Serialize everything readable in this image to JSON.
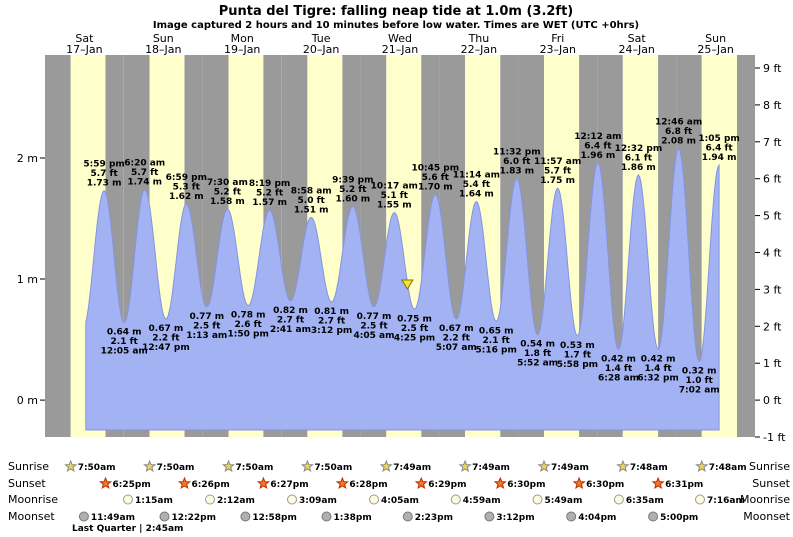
{
  "title": "Punta del Tigre: falling neap tide at 1.0m (3.2ft)",
  "subtitle": "Image captured 2 hours and 10 minutes before low water. Times are WET (UTC +0hrs)",
  "colors": {
    "night_band": "#9a9a9a",
    "day_band": "#ffffcc",
    "tide_fill": "#a2b2f2",
    "tide_stroke": "#8494e0",
    "day_label": "#cc0000",
    "marker_fill": "#f5e33a",
    "marker_stroke": "#857400",
    "sunrise_icon": "#f2d24b",
    "sunrise_icon_stroke": "#8a8a8a",
    "sunset_icon": "#f07828",
    "sunset_icon_stroke": "#c03000",
    "moonrise_icon": "#fffbe0",
    "moonrise_icon_stroke": "#999999",
    "moonset_icon": "#b0b0b0",
    "moonset_icon_stroke": "#777777"
  },
  "days": [
    {
      "name": "Sat",
      "date": "17–Jan"
    },
    {
      "name": "Sun",
      "date": "18–Jan"
    },
    {
      "name": "Mon",
      "date": "19–Jan"
    },
    {
      "name": "Tue",
      "date": "20–Jan"
    },
    {
      "name": "Wed",
      "date": "21–Jan"
    },
    {
      "name": "Thu",
      "date": "22–Jan"
    },
    {
      "name": "Fri",
      "date": "23–Jan"
    },
    {
      "name": "Sat",
      "date": "24–Jan"
    },
    {
      "name": "Sun",
      "date": "25–Jan"
    }
  ],
  "axis": {
    "left_ticks": [
      {
        "label": "2 m",
        "m": 2
      },
      {
        "label": "1 m",
        "m": 1
      },
      {
        "label": "0 m",
        "m": 0
      }
    ],
    "right_ticks": [
      {
        "label": "9 ft",
        "ft": 9
      },
      {
        "label": "8 ft",
        "ft": 8
      },
      {
        "label": "7 ft",
        "ft": 7
      },
      {
        "label": "6 ft",
        "ft": 6
      },
      {
        "label": "5 ft",
        "ft": 5
      },
      {
        "label": "4 ft",
        "ft": 4
      },
      {
        "label": "3 ft",
        "ft": 3
      },
      {
        "label": "2 ft",
        "ft": 2
      },
      {
        "label": "1 ft",
        "ft": 1
      },
      {
        "label": "0 ft",
        "ft": 0
      },
      {
        "label": "-1 ft",
        "ft": -1
      }
    ]
  },
  "chart_data": {
    "type": "area",
    "series_name": "Tide height",
    "x_unit": "hours since 17-Jan 00:00 (WET)",
    "y_unit_left": "m",
    "y_unit_right": "ft",
    "ylim_ft": [
      -1,
      9.35
    ],
    "x_range_hours": 216,
    "marker": {
      "abs_hours": 110.25,
      "height_m": 1.0
    },
    "extremes": [
      {
        "kind": "high",
        "abs_hours": 17.98,
        "m": 1.73,
        "time_label": "5:59 pm",
        "ft_label": "5.7 ft",
        "m_label": "1.73 m"
      },
      {
        "kind": "low",
        "abs_hours": 24.08,
        "m": 0.64,
        "time_label": "12:05 am",
        "ft_label": "2.1 ft",
        "m_label": "0.64 m"
      },
      {
        "kind": "high",
        "abs_hours": 30.33,
        "m": 1.74,
        "time_label": "6:20 am",
        "ft_label": "5.7 ft",
        "m_label": "1.74 m"
      },
      {
        "kind": "low",
        "abs_hours": 36.78,
        "m": 0.67,
        "time_label": "12:47 pm",
        "ft_label": "2.2 ft",
        "m_label": "0.67 m"
      },
      {
        "kind": "high",
        "abs_hours": 42.98,
        "m": 1.62,
        "time_label": "6:59 pm",
        "ft_label": "5.3 ft",
        "m_label": "1.62 m"
      },
      {
        "kind": "low",
        "abs_hours": 49.22,
        "m": 0.77,
        "time_label": "1:13 am",
        "ft_label": "2.5 ft",
        "m_label": "0.77 m"
      },
      {
        "kind": "high",
        "abs_hours": 55.5,
        "m": 1.58,
        "time_label": "7:30 am",
        "ft_label": "5.2 ft",
        "m_label": "1.58 m"
      },
      {
        "kind": "low",
        "abs_hours": 61.83,
        "m": 0.78,
        "time_label": "1:50 pm",
        "ft_label": "2.6 ft",
        "m_label": "0.78 m"
      },
      {
        "kind": "high",
        "abs_hours": 68.32,
        "m": 1.57,
        "time_label": "8:19 pm",
        "ft_label": "5.2 ft",
        "m_label": "1.57 m"
      },
      {
        "kind": "low",
        "abs_hours": 74.68,
        "m": 0.82,
        "time_label": "2:41 am",
        "ft_label": "2.7 ft",
        "m_label": "0.82 m"
      },
      {
        "kind": "high",
        "abs_hours": 80.97,
        "m": 1.51,
        "time_label": "8:58 am",
        "ft_label": "5.0 ft",
        "m_label": "1.51 m"
      },
      {
        "kind": "low",
        "abs_hours": 87.2,
        "m": 0.81,
        "time_label": "3:12 pm",
        "ft_label": "2.7 ft",
        "m_label": "0.81 m"
      },
      {
        "kind": "high",
        "abs_hours": 93.65,
        "m": 1.6,
        "time_label": "9:39 pm",
        "ft_label": "5.2 ft",
        "m_label": "1.60 m"
      },
      {
        "kind": "low",
        "abs_hours": 100.08,
        "m": 0.77,
        "time_label": "4:05 am",
        "ft_label": "2.5 ft",
        "m_label": "0.77 m"
      },
      {
        "kind": "high",
        "abs_hours": 106.28,
        "m": 1.55,
        "time_label": "10:17 am",
        "ft_label": "5.1 ft",
        "m_label": "1.55 m"
      },
      {
        "kind": "low",
        "abs_hours": 112.42,
        "m": 0.75,
        "time_label": "4:25 pm",
        "ft_label": "2.5 ft",
        "m_label": "0.75 m"
      },
      {
        "kind": "high",
        "abs_hours": 118.75,
        "m": 1.7,
        "time_label": "10:45 pm",
        "ft_label": "5.6 ft",
        "m_label": "1.70 m"
      },
      {
        "kind": "low",
        "abs_hours": 125.12,
        "m": 0.67,
        "time_label": "5:07 am",
        "ft_label": "2.2 ft",
        "m_label": "0.67 m"
      },
      {
        "kind": "high",
        "abs_hours": 131.23,
        "m": 1.64,
        "time_label": "11:14 am",
        "ft_label": "5.4 ft",
        "m_label": "1.64 m"
      },
      {
        "kind": "low",
        "abs_hours": 137.27,
        "m": 0.65,
        "time_label": "5:16 pm",
        "ft_label": "2.1 ft",
        "m_label": "0.65 m"
      },
      {
        "kind": "high",
        "abs_hours": 143.53,
        "m": 1.83,
        "time_label": "11:32 pm",
        "ft_label": "6.0 ft",
        "m_label": "1.83 m"
      },
      {
        "kind": "low",
        "abs_hours": 149.87,
        "m": 0.54,
        "time_label": "5:52 am",
        "ft_label": "1.8 ft",
        "m_label": "0.54 m"
      },
      {
        "kind": "high",
        "abs_hours": 155.95,
        "m": 1.75,
        "time_label": "11:57 am",
        "ft_label": "5.7 ft",
        "m_label": "1.75 m"
      },
      {
        "kind": "low",
        "abs_hours": 161.97,
        "m": 0.53,
        "time_label": "5:58 pm",
        "ft_label": "1.7 ft",
        "m_label": "0.53 m"
      },
      {
        "kind": "high",
        "abs_hours": 168.2,
        "m": 1.96,
        "time_label": "12:12 am",
        "ft_label": "6.4 ft",
        "m_label": "1.96 m"
      },
      {
        "kind": "low",
        "abs_hours": 174.47,
        "m": 0.42,
        "time_label": "6:28 am",
        "ft_label": "1.4 ft",
        "m_label": "0.42 m"
      },
      {
        "kind": "high",
        "abs_hours": 180.53,
        "m": 1.86,
        "time_label": "12:32 pm",
        "ft_label": "6.1 ft",
        "m_label": "1.86 m"
      },
      {
        "kind": "low",
        "abs_hours": 186.53,
        "m": 0.42,
        "time_label": "6:32 pm",
        "ft_label": "1.4 ft",
        "m_label": "0.42 m"
      },
      {
        "kind": "high",
        "abs_hours": 192.77,
        "m": 2.08,
        "time_label": "12:46 am",
        "ft_label": "6.8 ft",
        "m_label": "2.08 m"
      },
      {
        "kind": "low",
        "abs_hours": 199.03,
        "m": 0.32,
        "time_label": "7:02 am",
        "ft_label": "1.0 ft",
        "m_label": "0.32 m"
      },
      {
        "kind": "high",
        "abs_hours": 205.08,
        "m": 1.94,
        "time_label": "1:05 pm",
        "ft_label": "6.4 ft",
        "m_label": "1.94 m"
      }
    ]
  },
  "astro": {
    "row_labels": [
      "Sunrise",
      "Sunset",
      "Moonrise",
      "Moonset"
    ],
    "sunrise": [
      {
        "day": 0,
        "time": "7:50am",
        "hours": 7.83
      },
      {
        "day": 1,
        "time": "7:50am",
        "hours": 31.83
      },
      {
        "day": 2,
        "time": "7:50am",
        "hours": 55.83
      },
      {
        "day": 3,
        "time": "7:50am",
        "hours": 79.83
      },
      {
        "day": 4,
        "time": "7:49am",
        "hours": 103.82
      },
      {
        "day": 5,
        "time": "7:49am",
        "hours": 127.82
      },
      {
        "day": 6,
        "time": "7:49am",
        "hours": 151.82
      },
      {
        "day": 7,
        "time": "7:48am",
        "hours": 175.8
      },
      {
        "day": 8,
        "time": "7:48am",
        "hours": 199.8
      }
    ],
    "sunset": [
      {
        "day": 0,
        "time": "6:25pm",
        "hours": 18.42
      },
      {
        "day": 1,
        "time": "6:26pm",
        "hours": 42.43
      },
      {
        "day": 2,
        "time": "6:27pm",
        "hours": 66.45
      },
      {
        "day": 3,
        "time": "6:28pm",
        "hours": 90.47
      },
      {
        "day": 4,
        "time": "6:29pm",
        "hours": 114.48
      },
      {
        "day": 5,
        "time": "6:30pm",
        "hours": 138.5
      },
      {
        "day": 6,
        "time": "6:30pm",
        "hours": 162.5
      },
      {
        "day": 7,
        "time": "6:31pm",
        "hours": 186.52
      }
    ],
    "moonrise": [
      {
        "day": 1,
        "time": "1:15am",
        "hours": 25.25
      },
      {
        "day": 2,
        "time": "2:12am",
        "hours": 50.2
      },
      {
        "day": 3,
        "time": "3:09am",
        "hours": 75.15
      },
      {
        "day": 4,
        "time": "4:05am",
        "hours": 100.08
      },
      {
        "day": 5,
        "time": "4:59am",
        "hours": 124.98
      },
      {
        "day": 6,
        "time": "5:49am",
        "hours": 149.82
      },
      {
        "day": 7,
        "time": "6:35am",
        "hours": 174.58
      },
      {
        "day": 8,
        "time": "7:16am",
        "hours": 199.27
      }
    ],
    "moonset": [
      {
        "day": 0,
        "time": "11:49am",
        "hours": 11.82
      },
      {
        "day": 1,
        "time": "12:22pm",
        "hours": 36.37
      },
      {
        "day": 2,
        "time": "12:58pm",
        "hours": 60.97
      },
      {
        "day": 3,
        "time": "1:38pm",
        "hours": 85.63
      },
      {
        "day": 4,
        "time": "2:23pm",
        "hours": 110.38
      },
      {
        "day": 5,
        "time": "3:12pm",
        "hours": 135.2
      },
      {
        "day": 6,
        "time": "4:04pm",
        "hours": 160.07
      },
      {
        "day": 7,
        "time": "5:00pm",
        "hours": 185.0
      }
    ],
    "moon_phase_note": "Last Quarter | 2:45am"
  }
}
